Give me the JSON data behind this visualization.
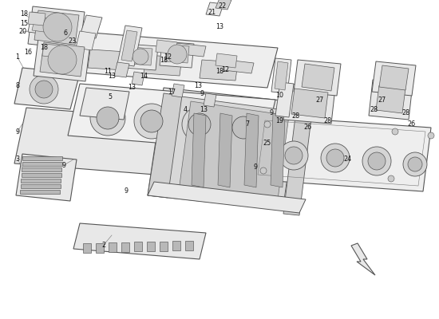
{
  "background_color": "#ffffff",
  "fig_width": 5.5,
  "fig_height": 4.0,
  "dpi": 100,
  "line_color": "#555555",
  "fill_light": "#e8e8e8",
  "fill_mid": "#d0d0d0",
  "fill_dark": "#b8b8b8",
  "label_color": "#222222",
  "label_fontsize": 6.0
}
